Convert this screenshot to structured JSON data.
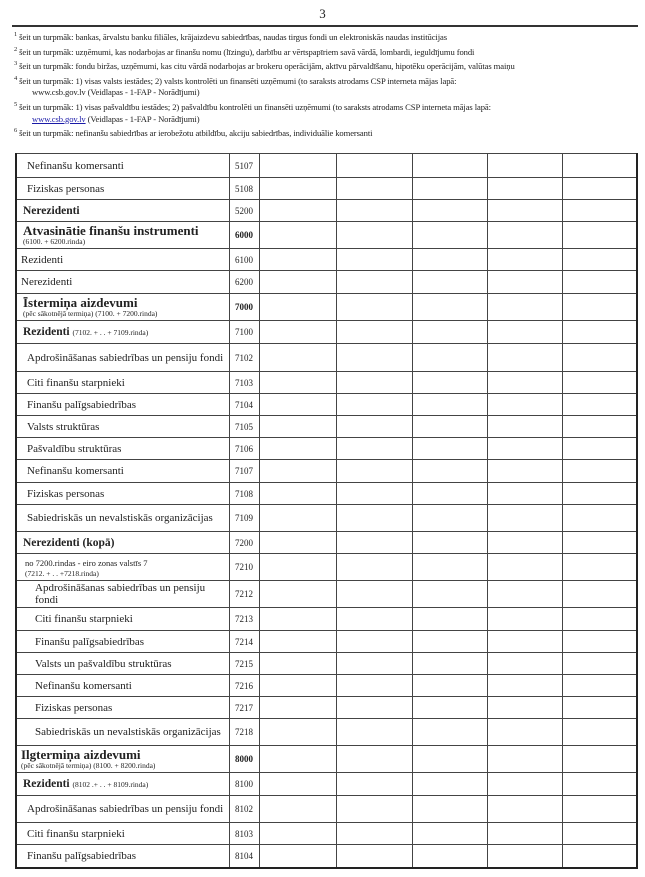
{
  "page_number": "3",
  "footnotes": [
    {
      "num": "1",
      "text": "šeit un turpmāk: bankas, ārvalstu banku filiāles, krājaizdevu sabiedrības, naudas tirgus fondi un elektroniskās naudas institūcijas"
    },
    {
      "num": "2",
      "text": "šeit un turpmāk: uzņēmumi, kas nodarbojas ar finanšu nomu (līzingu), darbību ar vērtspapīriem savā vārdā, lombardi, ieguldījumu fondi"
    },
    {
      "num": "3",
      "text": "šeit un turpmāk: fondu biržas, uzņēmumi, kas citu vārdā nodarbojas ar brokeru operācijām, aktīvu pārvaldīšanu, hipotēku operācijām, valūtas maiņu"
    },
    {
      "num": "4",
      "text": "šeit un turpmāk: 1) visas valsts iestādes; 2) valsts kontrolēti un finansēti uzņēmumi  (to saraksts atrodams CSP interneta mājas lapā:",
      "link": "www.csb.gov.lv",
      "tail": " (Veidlapas - 1-FAP - Norādījumi)"
    },
    {
      "num": "5",
      "text": "šeit un turpmāk: 1) visas pašvaldību iestādes; 2) pašvaldību kontrolēti un finansēti uzņēmumi  (to saraksts atrodams CSP interneta mājas lapā:",
      "link": "www.csb.gov.lv",
      "tail": " (Veidlapas - 1-FAP - Norādījumi)"
    },
    {
      "num": "6",
      "text": "šeit un turpmāk: nefinanšu sabiedrības ar ierobežotu atbildību, akciju sabiedrības, individuālie komersanti"
    }
  ],
  "rows": [
    {
      "label": "Nefinanšu komersanti",
      "code": "5107"
    },
    {
      "label": "Fiziskas personas",
      "code": "5108"
    },
    {
      "label": "Nerezidenti",
      "code": "5200"
    },
    {
      "label": "Atvasinātie finanšu instrumenti",
      "sub": "(6100. + 6200.rinda)",
      "code": "6000"
    },
    {
      "label": "Rezidenti",
      "code": "6100"
    },
    {
      "label": "Nerezidenti",
      "code": "6200"
    },
    {
      "label": "Īstermiņa aizdevumi",
      "sub": "(pēc sākotnējā termiņa)  (7100. + 7200.rinda)",
      "code": "7000"
    },
    {
      "label": "Rezidenti",
      "inline_sub": "(7102. + . . + 7109.rinda)",
      "code": "7100"
    },
    {
      "label": "Apdrošināšanas sabiedrības un pensiju fondi",
      "code": "7102"
    },
    {
      "label": "Citi finanšu starpnieki",
      "code": "7103"
    },
    {
      "label": "Finanšu palīgsabiedrības",
      "code": "7104"
    },
    {
      "label": "Valsts struktūras",
      "code": "7105"
    },
    {
      "label": "Pašvaldību struktūras",
      "code": "7106"
    },
    {
      "label": "Nefinanšu komersanti",
      "code": "7107"
    },
    {
      "label": "Fiziskas personas",
      "code": "7108"
    },
    {
      "label": "Sabiedriskās un nevalstiskās organizācijas",
      "code": "7109"
    },
    {
      "label": "Nerezidenti (kopā)",
      "code": "7200"
    },
    {
      "label": "no 7200.rindas - eiro zonas valstīs 7",
      "sub": "(7212. + . . +7218.rinda)",
      "code": "7210"
    },
    {
      "label": "Apdrošināšanas sabiedrības un pensiju fondi",
      "code": "7212"
    },
    {
      "label": "Citi finanšu starpnieki",
      "code": "7213"
    },
    {
      "label": "Finanšu palīgsabiedrības",
      "code": "7214"
    },
    {
      "label": "Valsts un pašvaldību struktūras",
      "code": "7215"
    },
    {
      "label": "Nefinanšu komersanti",
      "code": "7216"
    },
    {
      "label": "Fiziskas personas",
      "code": "7217"
    },
    {
      "label": "Sabiedriskās un nevalstiskās organizācijas",
      "code": "7218"
    },
    {
      "label": "Ilgtermiņa aizdevumi",
      "sub": "(pēc sākotnējā termiņa)  (8100. + 8200.rinda)",
      "code": "8000"
    },
    {
      "label": "Rezidenti",
      "inline_sub": "(8102 .+ . . + 8109.rinda)",
      "code": "8100"
    },
    {
      "label": "Apdrošināšanas sabiedrības un pensiju fondi",
      "code": "8102"
    },
    {
      "label": "Citi finanšu starpnieki",
      "code": "8103"
    },
    {
      "label": "Finanšu palīgsabiedrības",
      "code": "8104"
    }
  ]
}
